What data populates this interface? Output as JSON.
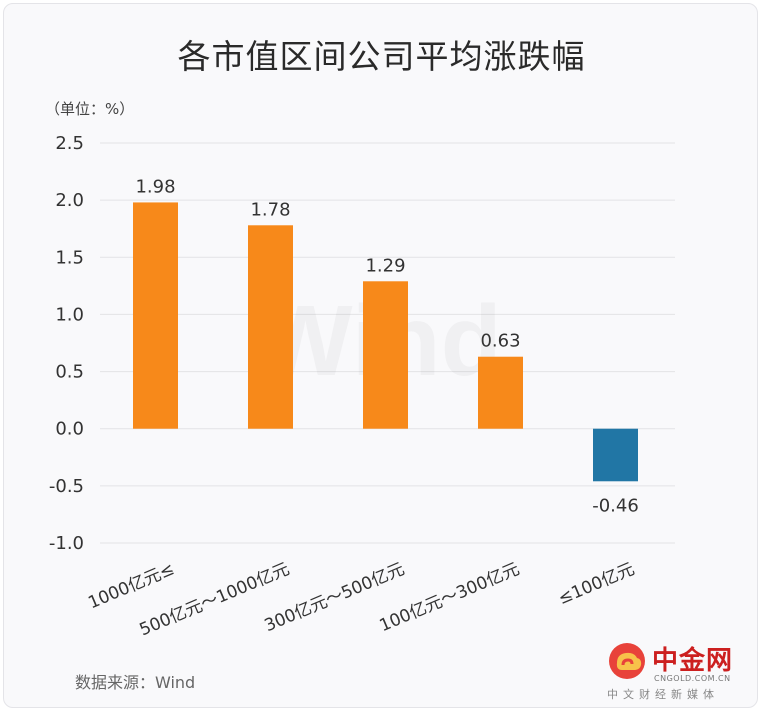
{
  "title": "各市值区间公司平均涨跌幅",
  "unit_label": "（单位：%）",
  "source": "数据来源：Wind",
  "watermark": "Wind",
  "logo": {
    "name": "中金网",
    "domain": "CNGOLD.COM.CN",
    "tagline": "中文财经新媒体"
  },
  "colors": {
    "positive": "#f7891a",
    "negative": "#2176a5",
    "grid": "#e3e3e6",
    "text": "#333333"
  },
  "chart_data": {
    "type": "bar",
    "title": "各市值区间公司平均涨跌幅",
    "ylabel": "（单位：%）",
    "xlabel": "",
    "categories": [
      "1000亿元≤",
      "500亿元～1000亿元",
      "300亿元～500亿元",
      "100亿元～300亿元",
      "≤100亿元"
    ],
    "values": [
      1.98,
      1.78,
      1.29,
      0.63,
      -0.46
    ],
    "value_labels": [
      "1.98",
      "1.78",
      "1.29",
      "0.63",
      "-0.46"
    ],
    "ylim": [
      -1.0,
      2.5
    ],
    "yticks": [
      "2.5",
      "2.0",
      "1.5",
      "1.0",
      "0.5",
      "0.0",
      "-0.5",
      "-1.0"
    ],
    "ytick_values": [
      2.5,
      2.0,
      1.5,
      1.0,
      0.5,
      0.0,
      -0.5,
      -1.0
    ],
    "grid": true,
    "legend": "none"
  }
}
